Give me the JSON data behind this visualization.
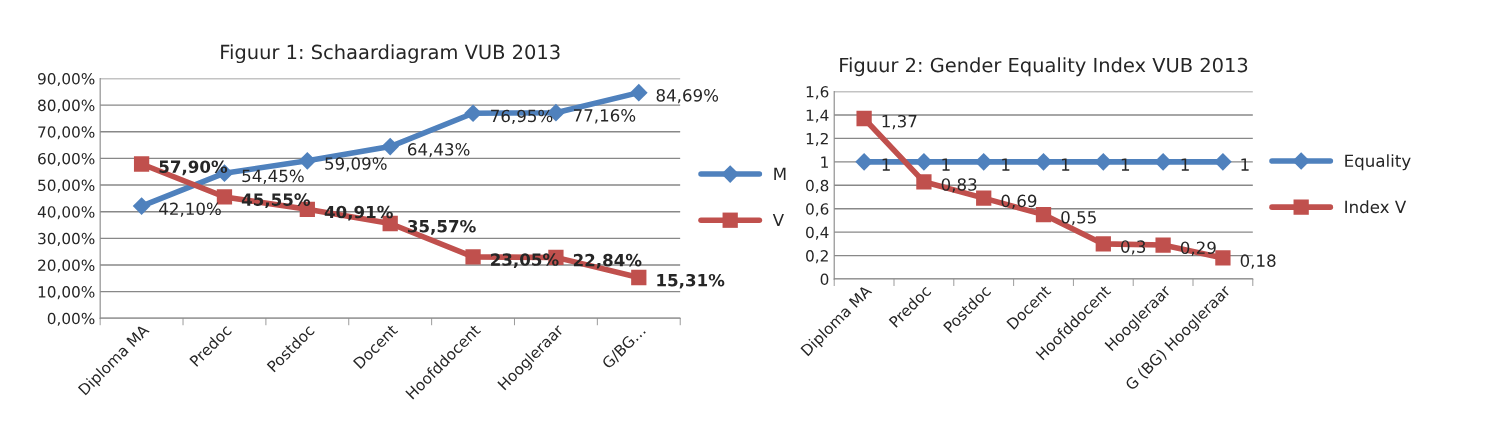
{
  "chart_data": [
    {
      "type": "line",
      "title": "Figuur 1: Schaardiagram VUB 2013",
      "categories": [
        "Diploma MA",
        "Predoc",
        "Postdoc",
        "Docent",
        "Hoofddocent",
        "Hoogleraar",
        "G/BG…"
      ],
      "series": [
        {
          "name": "M",
          "color": "#4f81bd",
          "marker": "diamond",
          "values": [
            42.1,
            54.45,
            59.09,
            64.43,
            76.95,
            77.16,
            84.69
          ],
          "value_labels": [
            "42,10%",
            "54,45%",
            "59,09%",
            "64,43%",
            "76,95%",
            "77,16%",
            "84,69%"
          ]
        },
        {
          "name": "V",
          "color": "#c0504d",
          "marker": "square",
          "values": [
            57.9,
            45.55,
            40.91,
            35.57,
            23.05,
            22.84,
            15.31
          ],
          "value_labels": [
            "57,90%",
            "45,55%",
            "40,91%",
            "35,57%",
            "23,05%",
            "22,84%",
            "15,31%"
          ]
        }
      ],
      "ylim": [
        0,
        90
      ],
      "yticks": [
        {
          "value": 0,
          "label": "0,00%"
        },
        {
          "value": 10,
          "label": "10,00%"
        },
        {
          "value": 20,
          "label": "20,00%"
        },
        {
          "value": 30,
          "label": "30,00%"
        },
        {
          "value": 40,
          "label": "40,00%"
        },
        {
          "value": 50,
          "label": "50,00%"
        },
        {
          "value": 60,
          "label": "60,00%"
        },
        {
          "value": 70,
          "label": "70,00%"
        },
        {
          "value": 80,
          "label": "80,00%"
        },
        {
          "value": 90,
          "label": "90,00%"
        }
      ],
      "grid": "y",
      "legend": "right"
    },
    {
      "type": "line",
      "title": "Figuur 2: Gender Equality Index VUB 2013",
      "categories": [
        "Diploma MA",
        "Predoc",
        "Postdoc",
        "Docent",
        "Hoofddocent",
        "Hoogleraar",
        "G (BG) Hoogleraar"
      ],
      "series": [
        {
          "name": "Equality",
          "color": "#4f81bd",
          "marker": "diamond",
          "values": [
            1,
            1,
            1,
            1,
            1,
            1,
            1
          ],
          "value_labels": [
            "1",
            "1",
            "1",
            "1",
            "1",
            "1",
            "1"
          ]
        },
        {
          "name": "Index V",
          "color": "#c0504d",
          "marker": "square",
          "values": [
            1.37,
            0.83,
            0.69,
            0.55,
            0.3,
            0.29,
            0.18
          ],
          "value_labels": [
            "1,37",
            "0,83",
            "0,69",
            "0,55",
            "0,3",
            "0,29",
            "0,18"
          ]
        }
      ],
      "ylim": [
        0,
        1.6
      ],
      "yticks": [
        0,
        {
          "value": 0.2,
          "label": "0,2"
        },
        {
          "value": 0.4,
          "label": "0,4"
        },
        {
          "value": 0.6,
          "label": "0,6"
        },
        {
          "value": 0.8,
          "label": "0,8"
        },
        1,
        {
          "value": 1.2,
          "label": "1,2"
        },
        {
          "value": 1.4,
          "label": "1,4"
        },
        {
          "value": 1.6,
          "label": "1,6"
        }
      ],
      "grid": "y",
      "legend": "right"
    }
  ]
}
